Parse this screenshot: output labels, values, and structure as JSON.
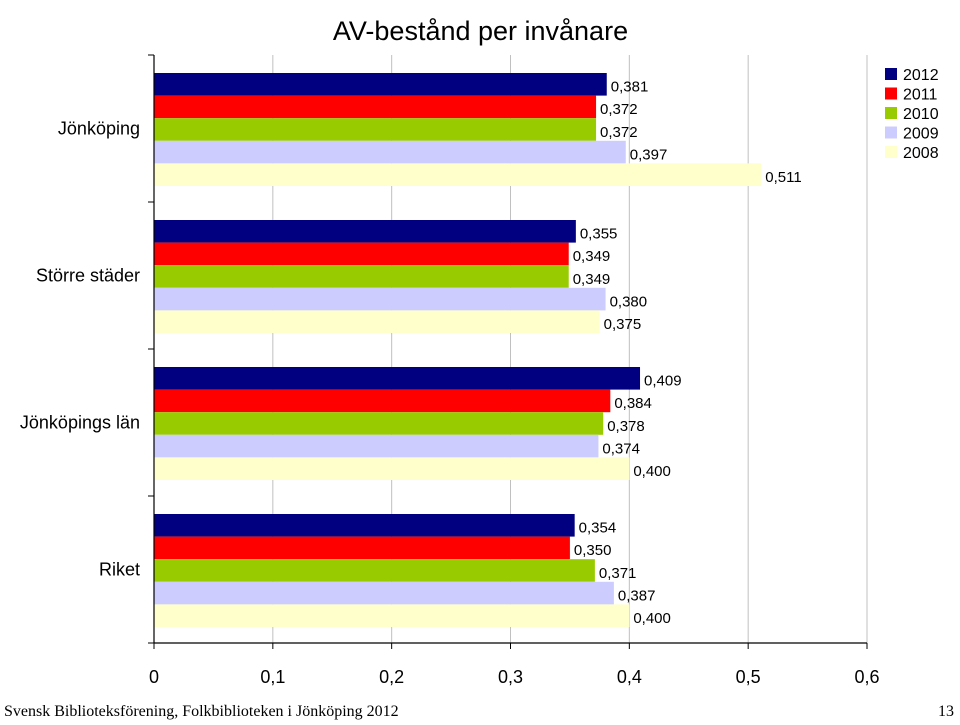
{
  "slide": {
    "footer_left": "Svensk Biblioteksförening, Folkbiblioteken i Jönköping 2012",
    "page_number": "13"
  },
  "chart_data": {
    "type": "bar",
    "orientation": "horizontal",
    "title": "AV-bestånd per invånare",
    "xlabel": "",
    "ylabel": "",
    "xlim": [
      0,
      0.6
    ],
    "xticks": [
      "0",
      "0,1",
      "0,2",
      "0,3",
      "0,4",
      "0,5",
      "0,6"
    ],
    "grid": true,
    "legend_position": "top-right",
    "categories": [
      "Jönköping",
      "Större städer",
      "Jönköpings län",
      "Riket"
    ],
    "series": [
      {
        "name": "2012",
        "color": "#000080",
        "values": [
          0.381,
          0.355,
          0.409,
          0.354
        ],
        "labels": [
          "0,381",
          "0,355",
          "0,409",
          "0,354"
        ]
      },
      {
        "name": "2011",
        "color": "#ff0000",
        "values": [
          0.372,
          0.349,
          0.384,
          0.35
        ],
        "labels": [
          "0,372",
          "0,349",
          "0,384",
          "0,350"
        ]
      },
      {
        "name": "2010",
        "color": "#99cc00",
        "values": [
          0.372,
          0.349,
          0.378,
          0.371
        ],
        "labels": [
          "0,372",
          "0,349",
          "0,378",
          "0,371"
        ]
      },
      {
        "name": "2009",
        "color": "#ccccff",
        "values": [
          0.397,
          0.38,
          0.374,
          0.387
        ],
        "labels": [
          "0,397",
          "0,380",
          "0,374",
          "0,387"
        ]
      },
      {
        "name": "2008",
        "color": "#ffffcc",
        "values": [
          0.511,
          0.375,
          0.4,
          0.4
        ],
        "labels": [
          "0,511",
          "0,375",
          "0,400",
          "0,400"
        ]
      }
    ]
  }
}
